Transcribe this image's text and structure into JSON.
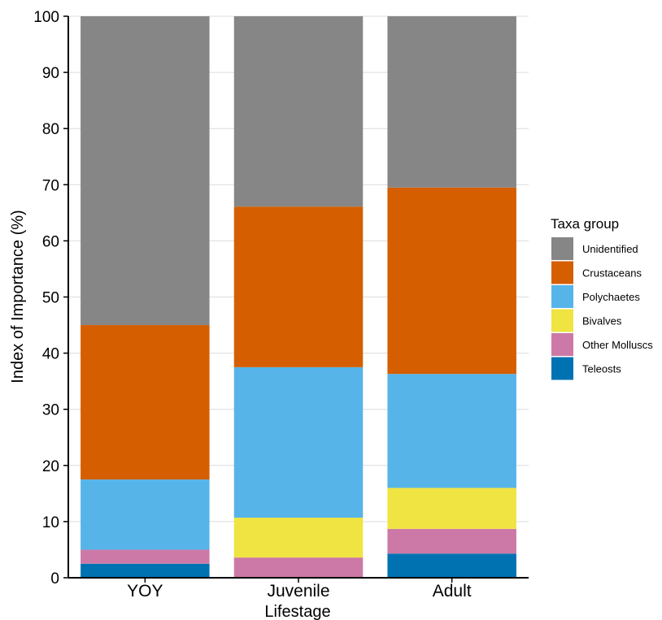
{
  "chart_data": {
    "type": "bar",
    "stacked": true,
    "categories": [
      "YOY",
      "Juvenile",
      "Adult"
    ],
    "series": [
      {
        "name": "Teleosts",
        "color": "#0072b2",
        "values": [
          2.5,
          0,
          4.3
        ]
      },
      {
        "name": "Other Molluscs",
        "color": "#cc79a7",
        "values": [
          2.5,
          3.6,
          4.4
        ]
      },
      {
        "name": "Bivalves",
        "color": "#f0e442",
        "values": [
          0,
          7.1,
          7.3
        ]
      },
      {
        "name": "Polychaetes",
        "color": "#56b4e9",
        "values": [
          12.5,
          26.8,
          20.3
        ]
      },
      {
        "name": "Crustaceans",
        "color": "#d55e00",
        "values": [
          27.5,
          28.6,
          33.2
        ]
      },
      {
        "name": "Unidentified",
        "color": "#868686",
        "values": [
          55.0,
          33.9,
          30.5
        ]
      }
    ],
    "title": "",
    "xlabel": "Lifestage",
    "ylabel": "Index of Importance (%)",
    "ylim": [
      0,
      100
    ],
    "yticks": [
      0,
      10,
      20,
      30,
      40,
      50,
      60,
      70,
      80,
      90,
      100
    ],
    "grid": true,
    "legend": {
      "title": "Taxa group",
      "position": "right",
      "order": [
        "Unidentified",
        "Crustaceans",
        "Polychaetes",
        "Bivalves",
        "Other Molluscs",
        "Teleosts"
      ]
    }
  }
}
